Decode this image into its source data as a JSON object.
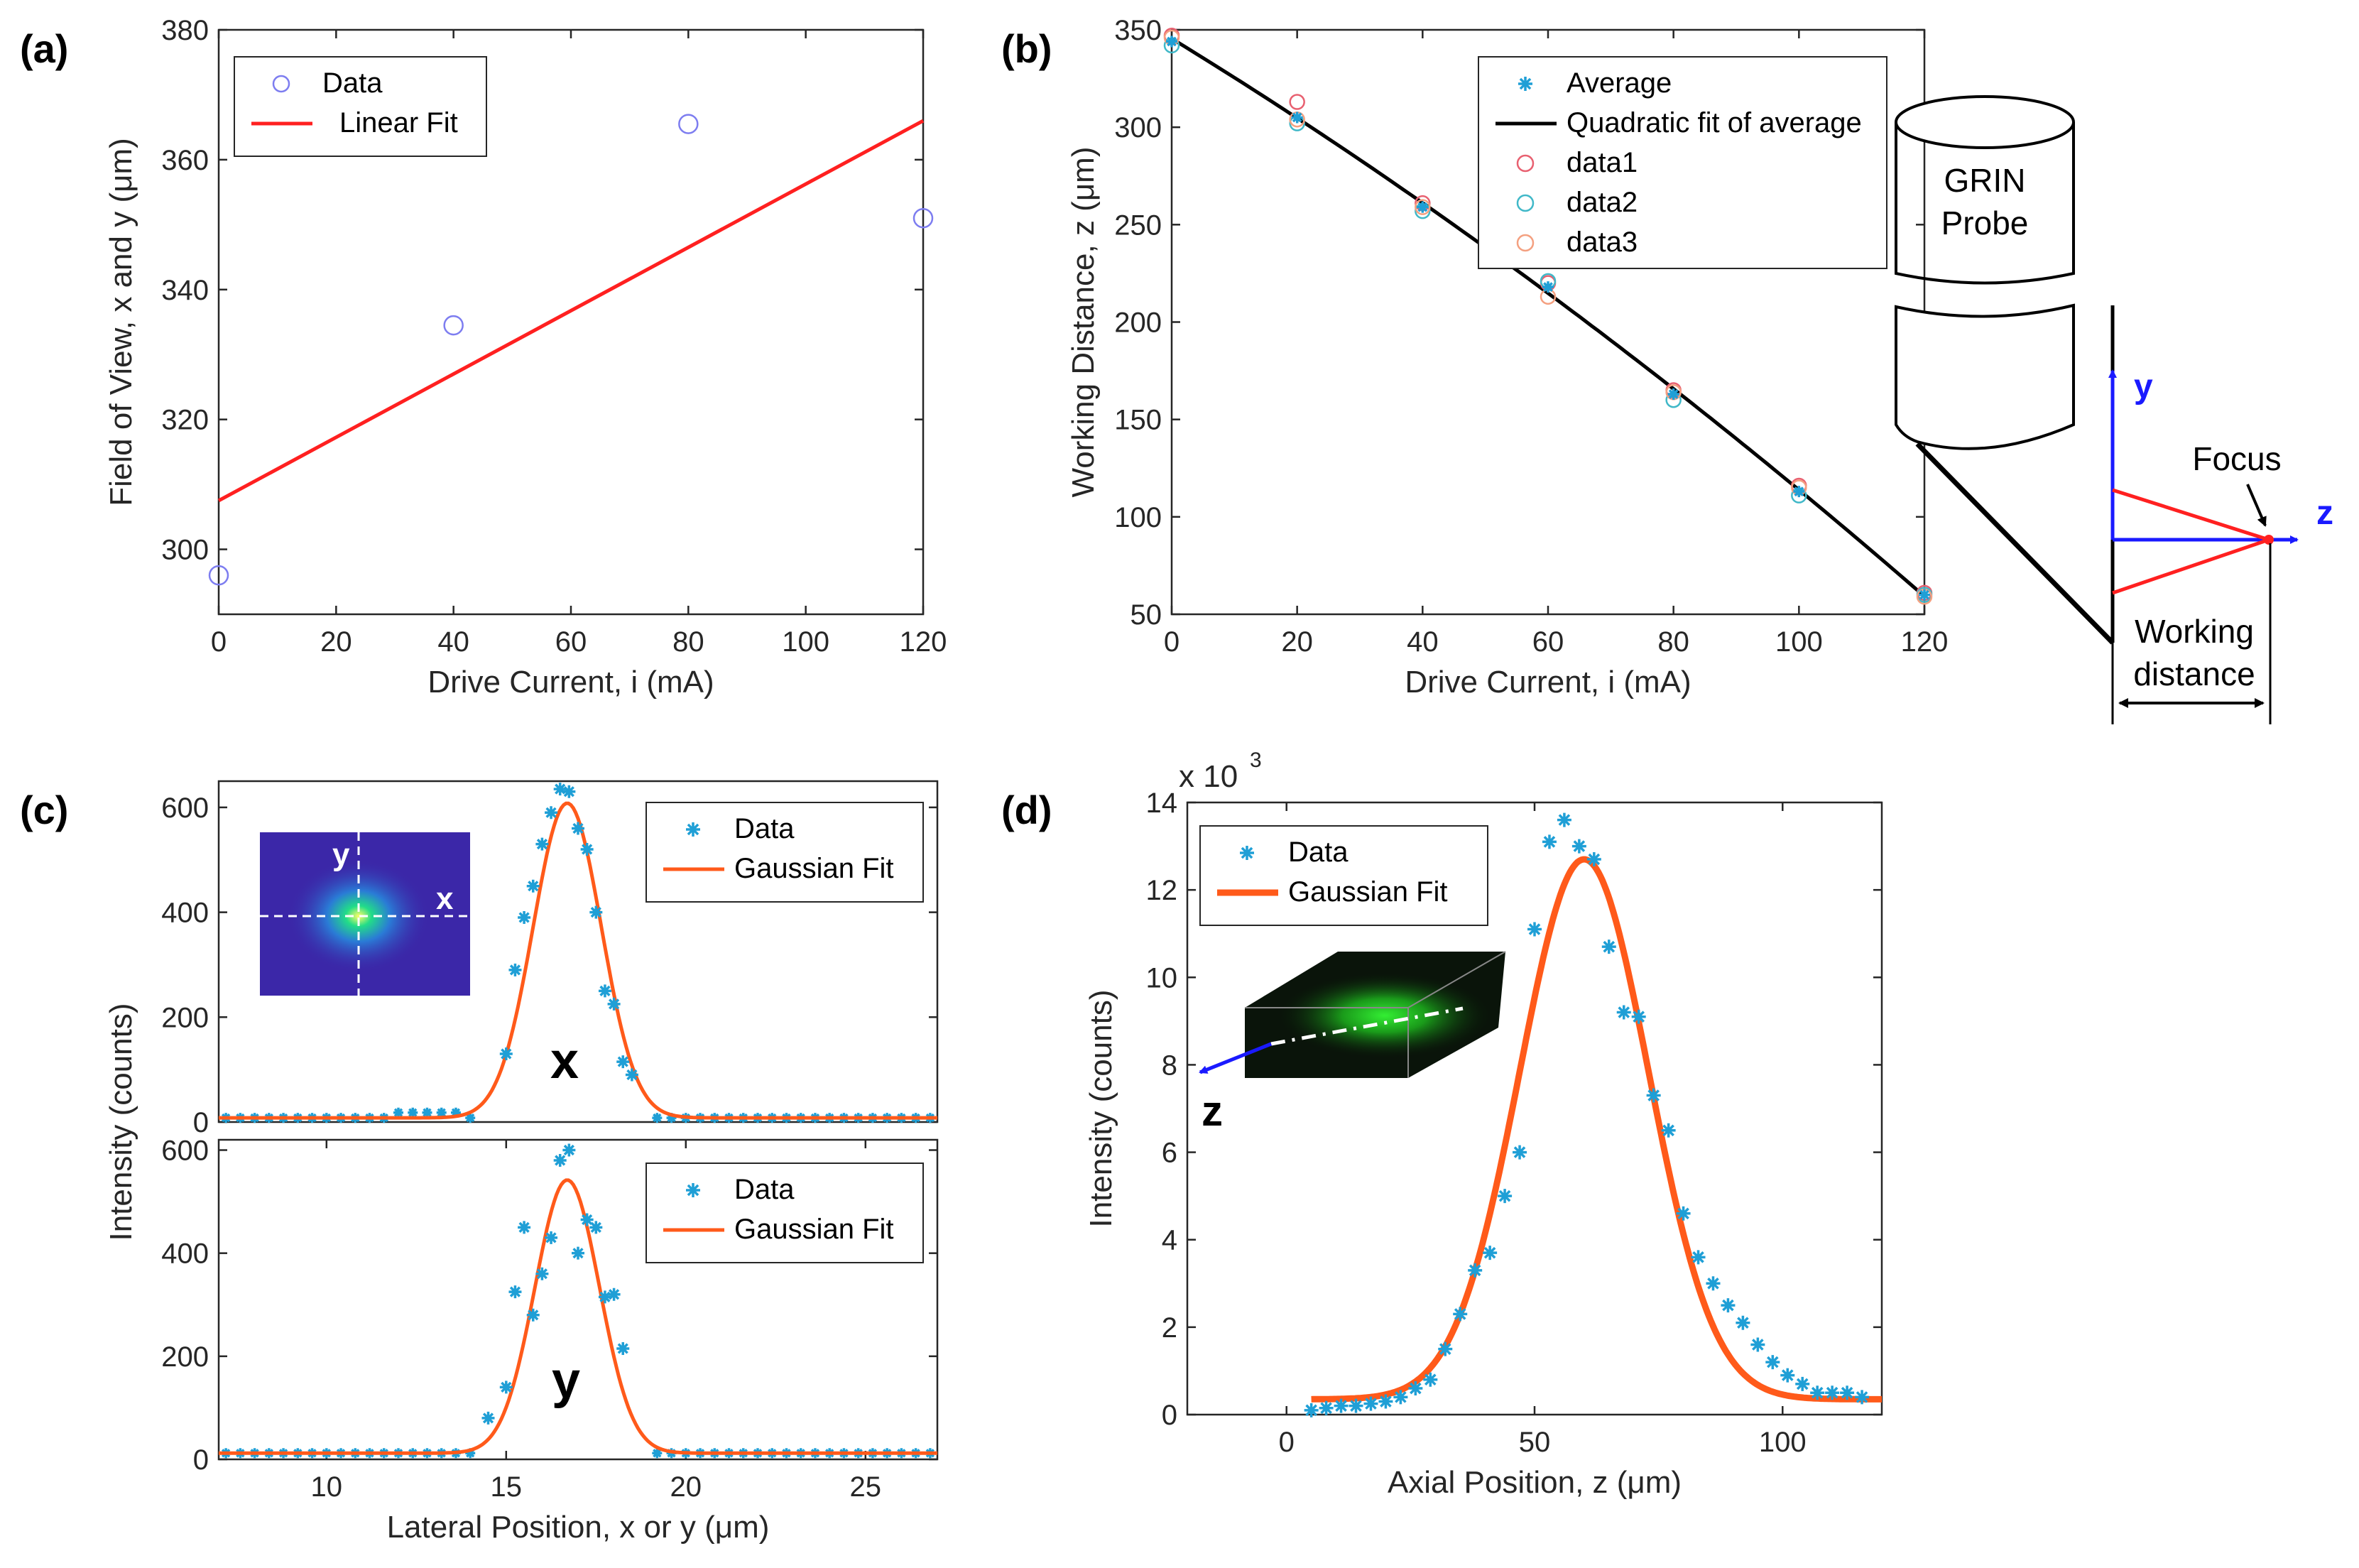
{
  "panels": {
    "a": {
      "letter": "(a)"
    },
    "b": {
      "letter": "(b)"
    },
    "c": {
      "letter": "(c)"
    },
    "d": {
      "letter": "(d)"
    }
  },
  "diagram": {
    "probe_label_1": "GRIN",
    "probe_label_2": "Probe",
    "y_axis": "y",
    "z_axis": "z",
    "focus": "Focus",
    "wd_1": "Working",
    "wd_2": "distance"
  },
  "insets": {
    "c_x": "x",
    "c_y": "y",
    "d_z": "z"
  },
  "colors": {
    "red_fit": "#ff2020",
    "orange_fit": "#ff5a1a",
    "blue_marker": "#1f9fd6",
    "purple_circle": "#7d7df0",
    "arrow_blue": "#1a1aff"
  },
  "chart_data": [
    {
      "id": "a",
      "type": "scatter",
      "xlabel": "Drive Current, i (mA)",
      "ylabel": "Field of View, x and y (μm)",
      "xlim": [
        0,
        120
      ],
      "ylim": [
        290,
        380
      ],
      "xticks": [
        0,
        20,
        40,
        60,
        80,
        100,
        120
      ],
      "yticks": [
        300,
        320,
        340,
        360,
        380
      ],
      "legend_position": "top-left",
      "series": [
        {
          "name": "Data",
          "marker": "circle",
          "x": [
            0,
            40,
            80,
            120
          ],
          "y": [
            296,
            334.5,
            365.5,
            351
          ]
        },
        {
          "name": "Linear Fit",
          "style": "line",
          "x": [
            0,
            120
          ],
          "y": [
            307.5,
            366
          ]
        }
      ]
    },
    {
      "id": "b",
      "type": "line",
      "xlabel": "Drive Current, i (mA)",
      "ylabel": "Working Distance, z (μm)",
      "xlim": [
        0,
        120
      ],
      "ylim": [
        50,
        350
      ],
      "xticks": [
        0,
        20,
        40,
        60,
        80,
        100,
        120
      ],
      "yticks": [
        50,
        100,
        150,
        200,
        250,
        300,
        350
      ],
      "legend_position": "top-right",
      "series": [
        {
          "name": "Average",
          "marker": "star",
          "x": [
            0,
            20,
            40,
            60,
            80,
            100,
            120
          ],
          "y": [
            344,
            305,
            259,
            218,
            163,
            113,
            60
          ]
        },
        {
          "name": "Quadratic fit of average",
          "style": "line",
          "x": [
            0,
            20,
            40,
            60,
            80,
            100,
            120
          ],
          "y": [
            345,
            305,
            262,
            215,
            165,
            113,
            60
          ]
        },
        {
          "name": "data1",
          "marker": "circle",
          "x": [
            0,
            20,
            40,
            60,
            80,
            100,
            120
          ],
          "y": [
            347,
            313,
            261,
            220,
            165,
            116,
            61
          ]
        },
        {
          "name": "data2",
          "marker": "circle",
          "x": [
            0,
            20,
            40,
            60,
            80,
            100,
            120
          ],
          "y": [
            342,
            302,
            257,
            221,
            160,
            111,
            60
          ]
        },
        {
          "name": "data3",
          "marker": "circle",
          "x": [
            0,
            20,
            40,
            60,
            80,
            100,
            120
          ],
          "y": [
            346,
            304,
            259,
            213,
            164,
            115,
            59
          ]
        }
      ]
    },
    {
      "id": "c_top",
      "type": "scatter",
      "xlim": [
        7,
        27
      ],
      "ylim": [
        0,
        650
      ],
      "yticks": [
        0,
        200,
        400,
        600
      ],
      "legend_position": "top-right",
      "series": [
        {
          "name": "Data",
          "marker": "star",
          "x": [
            15.0,
            15.25,
            15.5,
            15.75,
            16.0,
            16.25,
            16.5,
            16.75,
            17.0,
            17.25,
            17.5,
            17.75,
            18.0,
            18.25,
            18.5
          ],
          "y": [
            130,
            290,
            390,
            450,
            530,
            590,
            635,
            630,
            560,
            520,
            400,
            250,
            225,
            115,
            90
          ]
        },
        {
          "name": "Gaussian Fit",
          "style": "line",
          "gaussian": {
            "amp": 600,
            "mu": 16.7,
            "sigma": 0.95,
            "base": 8
          }
        }
      ]
    },
    {
      "id": "c_bottom",
      "type": "scatter",
      "xlabel": "Lateral Position, x or y (μm)",
      "ylabel": "Intensity (counts)",
      "xlim": [
        7,
        27
      ],
      "ylim": [
        0,
        620
      ],
      "xticks": [
        10,
        15,
        20,
        25
      ],
      "yticks": [
        0,
        200,
        400,
        600
      ],
      "legend_position": "top-right",
      "series": [
        {
          "name": "Data",
          "marker": "star",
          "x": [
            14.5,
            15.0,
            15.25,
            15.5,
            15.75,
            16.0,
            16.25,
            16.5,
            16.75,
            17.0,
            17.25,
            17.5,
            17.75,
            18.0,
            18.25
          ],
          "y": [
            80,
            140,
            325,
            450,
            280,
            360,
            430,
            580,
            600,
            400,
            465,
            450,
            315,
            320,
            215
          ]
        },
        {
          "name": "Gaussian Fit",
          "style": "line",
          "gaussian": {
            "amp": 530,
            "mu": 16.7,
            "sigma": 0.9,
            "base": 12
          }
        }
      ]
    },
    {
      "id": "d",
      "type": "scatter",
      "xlabel": "Axial Position, z (μm)",
      "ylabel": "Intensity (counts)",
      "multiplier": "x 10",
      "multiplier_exp": "3",
      "xlim": [
        -20,
        120
      ],
      "ylim": [
        0,
        14
      ],
      "xticks": [
        0,
        50,
        100
      ],
      "yticks": [
        0,
        2,
        4,
        6,
        8,
        10,
        12,
        14
      ],
      "legend_position": "top-left",
      "series": [
        {
          "name": "Data",
          "marker": "star",
          "x": [
            5,
            8,
            11,
            14,
            17,
            20,
            23,
            26,
            29,
            32,
            35,
            38,
            41,
            44,
            47,
            50,
            53,
            56,
            59,
            62,
            65,
            68,
            71,
            74,
            77,
            80,
            83,
            86,
            89,
            92,
            95,
            98,
            101,
            104,
            107,
            110,
            113,
            116
          ],
          "y": [
            0.1,
            0.15,
            0.2,
            0.2,
            0.25,
            0.3,
            0.4,
            0.6,
            0.8,
            1.5,
            2.3,
            3.3,
            3.7,
            5.0,
            6.0,
            11.1,
            13.1,
            13.6,
            13.0,
            12.7,
            10.7,
            9.2,
            9.1,
            7.3,
            6.5,
            4.6,
            3.6,
            3.0,
            2.5,
            2.1,
            1.6,
            1.2,
            0.9,
            0.7,
            0.5,
            0.5,
            0.5,
            0.4
          ]
        },
        {
          "name": "Gaussian Fit",
          "style": "line",
          "gaussian": {
            "amp": 12.35,
            "mu": 60,
            "sigma": 13,
            "base": 0.35
          },
          "xrange": [
            5,
            120
          ]
        }
      ]
    }
  ]
}
